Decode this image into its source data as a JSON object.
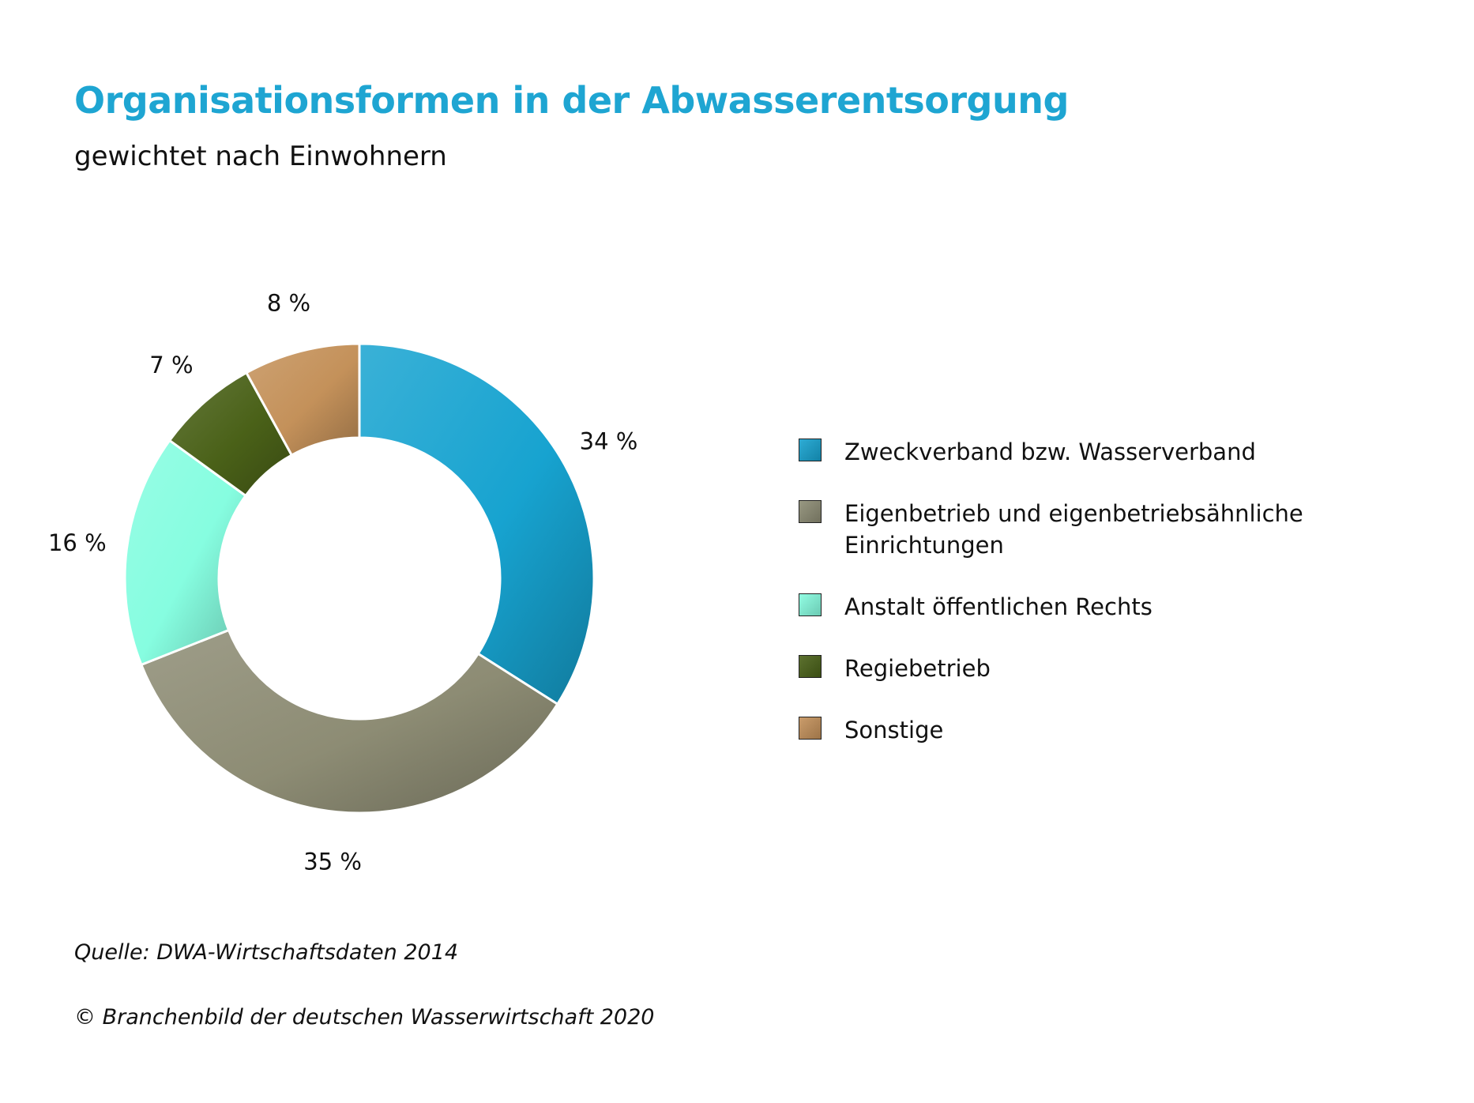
{
  "header": {
    "title": "Organisationsformen in der Abwasserentsorgung",
    "subtitle": "gewichtet nach Einwohnern"
  },
  "chart_data": {
    "type": "pie",
    "variant": "donut",
    "title": "Organisationsformen in der Abwasserentsorgung",
    "subtitle": "gewichtet nach Einwohnern",
    "unit": "%",
    "legend_position": "right",
    "slices": [
      {
        "label": "Zweckverband bzw. Wasserverband",
        "value": 34,
        "value_label": "34 %",
        "color": "#17a3d0"
      },
      {
        "label": "Eigenbetrieb und eigenbetriebsähnliche Einrichtungen",
        "value": 35,
        "value_label": "35 %",
        "color": "#8d8c74"
      },
      {
        "label": "Anstalt öffentlichen Rechts",
        "value": 16,
        "value_label": "16 %",
        "color": "#86fde0"
      },
      {
        "label": "Regiebetrieb",
        "value": 7,
        "value_label": "7 %",
        "color": "#4a6118"
      },
      {
        "label": "Sonstige",
        "value": 8,
        "value_label": "8 %",
        "color": "#c4915a"
      }
    ]
  },
  "footer": {
    "source": "Quelle: DWA-Wirtschaftsdaten 2014",
    "copyright": "© Branchenbild der deutschen Wasserwirtschaft 2020"
  }
}
